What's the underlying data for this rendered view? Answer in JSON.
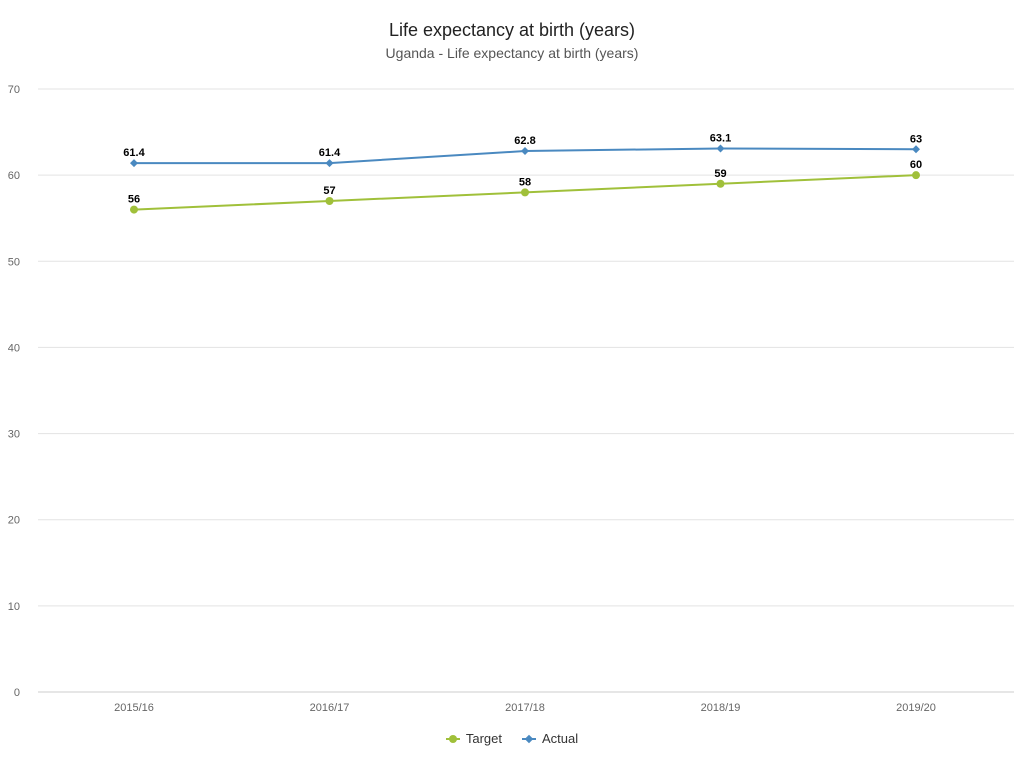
{
  "chart_data": {
    "type": "line",
    "title": "Life expectancy at birth (years)",
    "subtitle": "Uganda - Life expectancy at birth (years)",
    "xlabel": "",
    "ylabel": "",
    "categories": [
      "2015/16",
      "2016/17",
      "2017/18",
      "2018/19",
      "2019/20"
    ],
    "ylim": [
      0,
      70
    ],
    "yticks": [
      0,
      10,
      20,
      30,
      40,
      50,
      60,
      70
    ],
    "grid": true,
    "legend_position": "bottom-center",
    "series": [
      {
        "name": "Target",
        "values": [
          56,
          57,
          58,
          59,
          60
        ],
        "labels": [
          "56",
          "57",
          "58",
          "59",
          "60"
        ],
        "color": "#a0c03a",
        "marker": "circle"
      },
      {
        "name": "Actual",
        "values": [
          61.4,
          61.4,
          62.8,
          63.1,
          63
        ],
        "labels": [
          "61.4",
          "61.4",
          "62.8",
          "63.1",
          "63"
        ],
        "color": "#4a89c0",
        "marker": "diamond"
      }
    ]
  }
}
